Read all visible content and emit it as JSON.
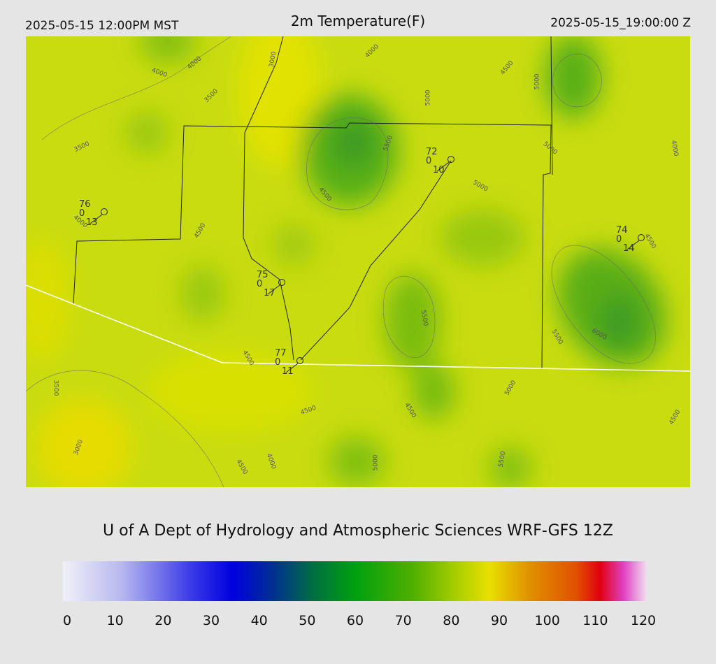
{
  "header": {
    "local_time": "2025-05-15 12:00PM MST",
    "title": "2m Temperature(F)",
    "valid_time": "2025-05-15_19:00:00 Z"
  },
  "map": {
    "contour_labels": [
      "4000",
      "4000",
      "3000",
      "3500",
      "3500",
      "4000",
      "4500",
      "5000",
      "5000",
      "5500",
      "5000",
      "4000",
      "5000",
      "4500",
      "4500",
      "4000",
      "4500",
      "5500",
      "6000",
      "5500",
      "4500",
      "3500",
      "5000",
      "4500",
      "4500",
      "4500",
      "3000",
      "4000",
      "4500",
      "5000",
      "5500"
    ],
    "stations": [
      {
        "temp": 76,
        "precip": 0,
        "dew": 13
      },
      {
        "temp": 72,
        "precip": 0,
        "dew": 10
      },
      {
        "temp": 74,
        "precip": 0,
        "dew": 14
      },
      {
        "temp": 75,
        "precip": 0,
        "dew": 17
      },
      {
        "temp": 77,
        "precip": 0,
        "dew": 11
      }
    ]
  },
  "credit": "U of A Dept of Hydrology and Atmospheric Sciences WRF-GFS 12Z",
  "colorbar": {
    "ticks": [
      0,
      10,
      20,
      30,
      40,
      50,
      60,
      70,
      80,
      90,
      100,
      110,
      120
    ]
  }
}
